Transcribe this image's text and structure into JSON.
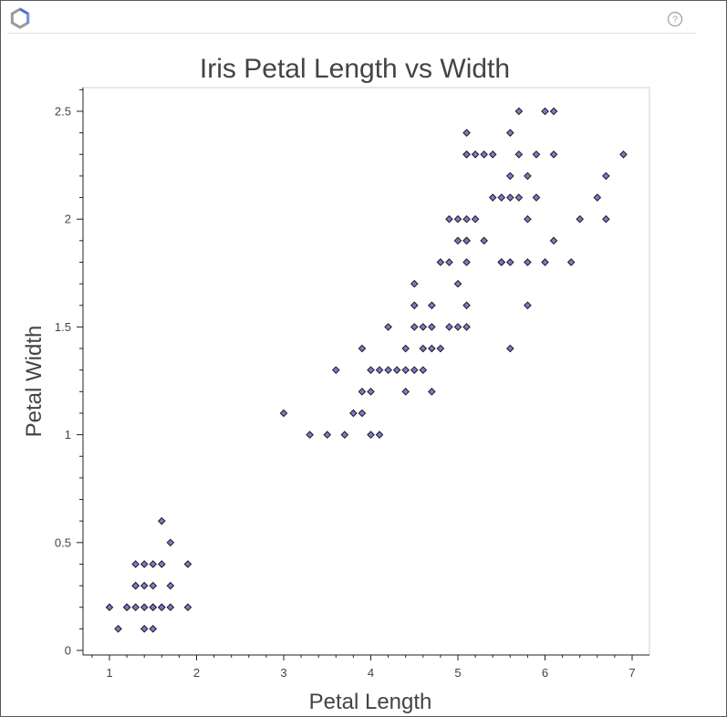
{
  "toolbar": {
    "logo_icon": "bokeh-logo-icon",
    "help_icon": "help-question-icon",
    "help_symbol": "?"
  },
  "chart_data": {
    "type": "scatter",
    "title": "Iris Petal Length vs Width",
    "xlabel": "Petal Length",
    "ylabel": "Petal Width",
    "xlim": [
      0.8,
      7.0
    ],
    "ylim": [
      0,
      2.6
    ],
    "xticks": [
      "1",
      "2",
      "3",
      "4",
      "5",
      "6",
      "7"
    ],
    "yticks": [
      "0",
      "0.5",
      "1",
      "1.5",
      "2",
      "2.5"
    ],
    "grid": false,
    "marker": "diamond",
    "marker_fill": "#7b7bd0",
    "marker_edge": "#1a1a1a",
    "x": [
      1.0,
      1.1,
      1.2,
      1.2,
      1.3,
      1.3,
      1.3,
      1.3,
      1.4,
      1.4,
      1.4,
      1.4,
      1.5,
      1.5,
      1.5,
      1.5,
      1.5,
      1.6,
      1.6,
      1.6,
      1.6,
      1.7,
      1.7,
      1.7,
      1.9,
      1.9,
      3.0,
      3.3,
      3.5,
      3.6,
      3.7,
      3.8,
      3.9,
      3.9,
      3.9,
      4.0,
      4.0,
      4.0,
      4.1,
      4.1,
      4.2,
      4.2,
      4.3,
      4.4,
      4.4,
      4.4,
      4.5,
      4.5,
      4.5,
      4.5,
      4.6,
      4.6,
      4.6,
      4.7,
      4.7,
      4.7,
      4.7,
      4.8,
      4.8,
      4.9,
      4.9,
      4.9,
      5.0,
      5.0,
      5.0,
      5.0,
      5.1,
      5.1,
      5.1,
      5.1,
      5.1,
      5.1,
      5.1,
      5.1,
      5.1,
      5.2,
      5.2,
      5.3,
      5.3,
      5.4,
      5.4,
      5.5,
      5.5,
      5.5,
      5.6,
      5.6,
      5.6,
      5.6,
      5.6,
      5.7,
      5.7,
      5.7,
      5.8,
      5.8,
      5.8,
      5.8,
      5.9,
      5.9,
      6.0,
      6.0,
      6.1,
      6.1,
      6.1,
      6.3,
      6.4,
      6.6,
      6.7,
      6.7,
      6.9
    ],
    "y": [
      0.2,
      0.1,
      0.2,
      0.2,
      0.2,
      0.3,
      0.4,
      0.3,
      0.2,
      0.3,
      0.1,
      0.4,
      0.2,
      0.1,
      0.4,
      0.3,
      0.2,
      0.2,
      0.4,
      0.6,
      0.2,
      0.2,
      0.3,
      0.5,
      0.2,
      0.4,
      1.1,
      1.0,
      1.0,
      1.3,
      1.0,
      1.1,
      1.1,
      1.2,
      1.4,
      1.0,
      1.3,
      1.2,
      1.3,
      1.0,
      1.3,
      1.5,
      1.3,
      1.4,
      1.2,
      1.3,
      1.5,
      1.3,
      1.6,
      1.7,
      1.3,
      1.4,
      1.5,
      1.4,
      1.2,
      1.5,
      1.6,
      1.8,
      1.4,
      1.5,
      1.8,
      2.0,
      1.5,
      1.7,
      1.9,
      2.0,
      1.5,
      1.6,
      1.8,
      1.9,
      2.0,
      2.3,
      2.4,
      1.9,
      2.3,
      2.0,
      2.3,
      1.9,
      2.3,
      2.1,
      2.3,
      1.8,
      2.1,
      1.8,
      1.4,
      1.8,
      2.1,
      2.2,
      2.4,
      2.1,
      2.3,
      2.5,
      1.6,
      1.8,
      2.2,
      2.0,
      2.1,
      2.3,
      1.8,
      2.5,
      1.9,
      2.3,
      2.5,
      1.8,
      2.0,
      2.1,
      2.2,
      2.0,
      2.3
    ]
  }
}
